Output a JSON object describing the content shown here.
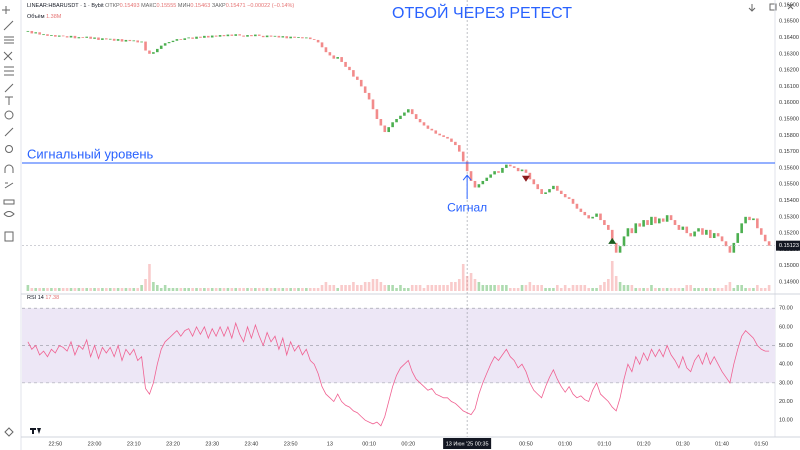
{
  "header": {
    "symbol": "LINEAR:HBARUSDT · 1 · Bybit",
    "ohlc": [
      {
        "label": "ОТКР",
        "value": "0.15493"
      },
      {
        "label": "МАКС",
        "value": "0.15555"
      },
      {
        "label": "МИН",
        "value": "0.15463"
      },
      {
        "label": "ЗАКР",
        "value": "0.15471"
      }
    ],
    "change": "−0.00022 (−0.14%)",
    "volume_label": "Объём",
    "volume_value": "1.38M"
  },
  "chart_data": {
    "type": "candlestick",
    "title": "ОТБОЙ ЧЕРЕЗ РЕТЕСТ",
    "up_color": "#4caf50",
    "down_color": "#f28b8b",
    "close": [
      0.1644,
      0.16425,
      0.16432,
      0.16418,
      0.1642,
      0.1641,
      0.16415,
      0.16405,
      0.16412,
      0.16408,
      0.164,
      0.1641,
      0.16395,
      0.16402,
      0.16398,
      0.16405,
      0.16392,
      0.164,
      0.16385,
      0.16395,
      0.16388,
      0.16392,
      0.1638,
      0.1639,
      0.16375,
      0.16385,
      0.16378,
      0.16382,
      0.1637,
      0.16375,
      0.1632,
      0.163,
      0.1631,
      0.1633,
      0.1635,
      0.16365,
      0.16372,
      0.1638,
      0.1639,
      0.16385,
      0.16395,
      0.164,
      0.16392,
      0.16405,
      0.16398,
      0.1641,
      0.164,
      0.16412,
      0.16405,
      0.16415,
      0.16408,
      0.16418,
      0.1641,
      0.1642,
      0.16412,
      0.16405,
      0.16415,
      0.16408,
      0.16418,
      0.1641,
      0.16402,
      0.16412,
      0.16405,
      0.1641,
      0.164,
      0.16408,
      0.16395,
      0.16405,
      0.16398,
      0.16402,
      0.16395,
      0.164,
      0.1639,
      0.16385,
      0.1637,
      0.1634,
      0.1631,
      0.1629,
      0.1627,
      0.1628,
      0.1625,
      0.1622,
      0.162,
      0.1616,
      0.1614,
      0.161,
      0.1606,
      0.1602,
      0.1596,
      0.159,
      0.1586,
      0.1582,
      0.1585,
      0.1588,
      0.159,
      0.1592,
      0.1594,
      0.1596,
      0.1593,
      0.159,
      0.1588,
      0.1586,
      0.1584,
      0.1583,
      0.1581,
      0.158,
      0.1579,
      0.1578,
      0.1576,
      0.1574,
      0.157,
      0.1564,
      0.1558,
      0.1552,
      0.1548,
      0.155,
      0.1552,
      0.1554,
      0.1556,
      0.1558,
      0.1557,
      0.156,
      0.1562,
      0.1561,
      0.156,
      0.1558,
      0.1559,
      0.1557,
      0.1553,
      0.155,
      0.1547,
      0.1544,
      0.1545,
      0.1547,
      0.1549,
      0.1546,
      0.1544,
      0.1542,
      0.1541,
      0.1538,
      0.1535,
      0.1533,
      0.1531,
      0.1529,
      0.153,
      0.1532,
      0.1528,
      0.1525,
      0.1522,
      0.1514,
      0.1508,
      0.1512,
      0.1518,
      0.1523,
      0.152,
      0.1526,
      0.1524,
      0.1528,
      0.1525,
      0.153,
      0.1526,
      0.1529,
      0.1527,
      0.1531,
      0.1528,
      0.1525,
      0.1522,
      0.1524,
      0.152,
      0.1518,
      0.1521,
      0.1523,
      0.1519,
      0.1522,
      0.1517,
      0.152,
      0.1518,
      0.1515,
      0.1512,
      0.1508,
      0.1514,
      0.152,
      0.1526,
      0.153,
      0.1528,
      0.1529,
      0.1523,
      0.1519,
      0.1515,
      0.15123
    ],
    "xlim": [
      -1.5,
      190.5
    ],
    "ylim": [
      0.14845,
      0.1663
    ],
    "yticks": [
      {
        "value": 0.149,
        "label": "0.14900"
      },
      {
        "value": 0.15,
        "label": "0.15000"
      },
      {
        "value": 0.151,
        "label": "0.15100"
      },
      {
        "value": 0.152,
        "label": "0.15200"
      },
      {
        "value": 0.153,
        "label": "0.15300"
      },
      {
        "value": 0.154,
        "label": "0.15400"
      },
      {
        "value": 0.155,
        "label": "0.15500"
      },
      {
        "value": 0.156,
        "label": "0.15600"
      },
      {
        "value": 0.157,
        "label": "0.15700"
      },
      {
        "value": 0.158,
        "label": "0.15800"
      },
      {
        "value": 0.159,
        "label": "0.15900"
      },
      {
        "value": 0.16,
        "label": "0.16000"
      },
      {
        "value": 0.161,
        "label": "0.16100"
      },
      {
        "value": 0.162,
        "label": "0.16200"
      },
      {
        "value": 0.163,
        "label": "0.16300"
      },
      {
        "value": 0.164,
        "label": "0.16400"
      },
      {
        "value": 0.165,
        "label": "0.16500"
      },
      {
        "value": 0.166,
        "label": "0.16600"
      }
    ],
    "xticks": [
      {
        "value": 7,
        "label": "22:50"
      },
      {
        "value": 17,
        "label": "23:00"
      },
      {
        "value": 27,
        "label": "23:10"
      },
      {
        "value": 37,
        "label": "23:20"
      },
      {
        "value": 47,
        "label": "23:30"
      },
      {
        "value": 57,
        "label": "23:40"
      },
      {
        "value": 67,
        "label": "23:50"
      },
      {
        "value": 77,
        "label": "13"
      },
      {
        "value": 87,
        "label": "00:10"
      },
      {
        "value": 97,
        "label": "00:20"
      },
      {
        "value": 127,
        "label": "00:50"
      },
      {
        "value": 137,
        "label": "01:00"
      },
      {
        "value": 147,
        "label": "01:10"
      },
      {
        "value": 157,
        "label": "01:20"
      },
      {
        "value": 167,
        "label": "01:30"
      },
      {
        "value": 177,
        "label": "01:40"
      },
      {
        "value": 187,
        "label": "01:50"
      }
    ],
    "crosshair": {
      "value": 112,
      "label": "13 Июн '25  00:35"
    },
    "last_price": {
      "value": 0.15123,
      "label": "0.15123"
    },
    "level": {
      "value": 0.1563,
      "label": "Сигнальный уровень",
      "color": "#2962ff"
    },
    "signal": {
      "x": 112,
      "label": "Сигнал",
      "color": "#2962ff"
    },
    "markers": [
      {
        "x": 127,
        "direction": "down",
        "color": "#8b1a1a"
      },
      {
        "x": 149,
        "direction": "up",
        "color": "#1b5e20"
      }
    ],
    "volume": {
      "ylim": [
        0,
        97
      ],
      "values": [
        2,
        1,
        1,
        1,
        1,
        1,
        1,
        1,
        1,
        1,
        1,
        1,
        1,
        1,
        1,
        1,
        1,
        1,
        1,
        1,
        1,
        1,
        1,
        1,
        1,
        1,
        1,
        1,
        1,
        2,
        4,
        9,
        3,
        2,
        1,
        2,
        1,
        1,
        1,
        1,
        1,
        1,
        1,
        1,
        1,
        1,
        1,
        1,
        1,
        1,
        1,
        1,
        1,
        1,
        1,
        1,
        1,
        1,
        1,
        1,
        1,
        1,
        1,
        1,
        1,
        1,
        1,
        1,
        1,
        1,
        1,
        1,
        1,
        1,
        1,
        2,
        3,
        2,
        2,
        1,
        2,
        2,
        2,
        3,
        2,
        2,
        3,
        3,
        4,
        4,
        3,
        2,
        2,
        2,
        1,
        2,
        1,
        1,
        2,
        2,
        2,
        1,
        2,
        2,
        2,
        2,
        2,
        2,
        3,
        3,
        4,
        9,
        5,
        6,
        4,
        3,
        2,
        2,
        2,
        2,
        2,
        2,
        2,
        1,
        1,
        1,
        2,
        2,
        3,
        2,
        2,
        2,
        1,
        1,
        1,
        2,
        1,
        2,
        1,
        2,
        2,
        2,
        2,
        1,
        1,
        1,
        2,
        3,
        4,
        10,
        5,
        3,
        2,
        2,
        2,
        1,
        1,
        1,
        1,
        2,
        1,
        1,
        1,
        1,
        1,
        1,
        1,
        1,
        2,
        2,
        1,
        1,
        1,
        1,
        1,
        1,
        1,
        1,
        2,
        3,
        1,
        2,
        2,
        1,
        1,
        1,
        2,
        1,
        1,
        2
      ]
    },
    "rsi": {
      "name": "RSI 14",
      "value_label": "17.38",
      "color": "#f06292",
      "band": [
        30,
        70
      ],
      "midline": 50,
      "ylim": [
        1,
        76
      ],
      "yticks": [
        {
          "value": 70,
          "label": "70.00"
        },
        {
          "value": 60,
          "label": "60.00"
        },
        {
          "value": 50,
          "label": "50.00"
        },
        {
          "value": 40,
          "label": "40.00"
        },
        {
          "value": 30,
          "label": "30.00"
        },
        {
          "value": 20,
          "label": "20.00"
        },
        {
          "value": 10,
          "label": "10.00"
        }
      ],
      "values": [
        52,
        48,
        50,
        45,
        47,
        44,
        48,
        46,
        50,
        49,
        47,
        52,
        45,
        50,
        48,
        53,
        44,
        50,
        43,
        49,
        46,
        49,
        44,
        50,
        42,
        48,
        45,
        48,
        42,
        44,
        27,
        24,
        30,
        40,
        48,
        52,
        54,
        56,
        58,
        55,
        58,
        59,
        55,
        60,
        56,
        60,
        54,
        59,
        55,
        60,
        55,
        60,
        54,
        62,
        56,
        52,
        60,
        54,
        61,
        55,
        50,
        57,
        52,
        55,
        48,
        54,
        45,
        52,
        47,
        50,
        45,
        48,
        42,
        40,
        35,
        28,
        24,
        22,
        20,
        24,
        20,
        18,
        17,
        15,
        14,
        12,
        10,
        9,
        8,
        9,
        7,
        12,
        20,
        28,
        34,
        38,
        40,
        42,
        36,
        32,
        30,
        28,
        26,
        27,
        24,
        23,
        22,
        22,
        20,
        19,
        17,
        15,
        14,
        13,
        16,
        24,
        30,
        35,
        40,
        44,
        42,
        45,
        48,
        44,
        42,
        38,
        40,
        36,
        30,
        26,
        24,
        22,
        28,
        33,
        37,
        32,
        28,
        25,
        28,
        24,
        22,
        23,
        21,
        20,
        26,
        30,
        24,
        22,
        20,
        17,
        15,
        22,
        32,
        40,
        36,
        44,
        40,
        46,
        42,
        48,
        44,
        48,
        44,
        50,
        45,
        42,
        38,
        44,
        38,
        36,
        42,
        45,
        40,
        46,
        40,
        44,
        40,
        36,
        33,
        30,
        40,
        48,
        55,
        58,
        56,
        54,
        50,
        48,
        47,
        47
      ]
    }
  }
}
